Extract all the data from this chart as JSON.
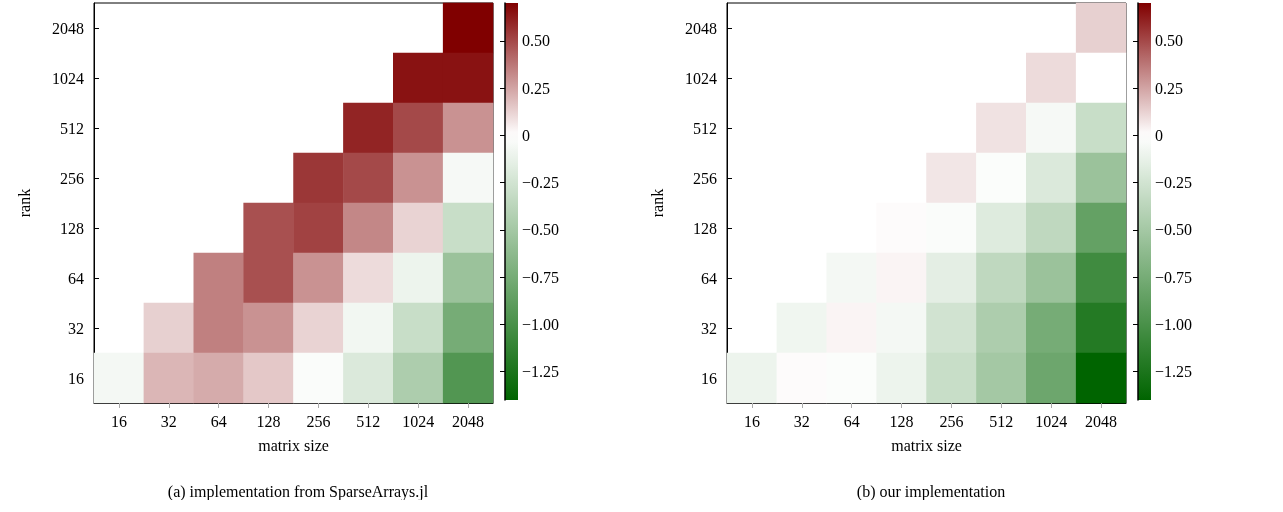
{
  "chart_data": [
    {
      "type": "heatmap",
      "xlabel": "matrix size",
      "ylabel": "rank",
      "annotations": [
        "(a) implementation from SparseArrays.jl"
      ],
      "categories": [
        "16",
        "32",
        "64",
        "128",
        "256",
        "512",
        "1024",
        "2048"
      ],
      "y_categories": [
        "2048",
        "1024",
        "512",
        "256",
        "128",
        "64",
        "32",
        "16"
      ],
      "cells": [
        [
          null,
          null,
          null,
          null,
          null,
          null,
          null,
          0.7
        ],
        [
          null,
          null,
          null,
          null,
          null,
          null,
          0.65,
          0.65
        ],
        [
          null,
          null,
          null,
          null,
          null,
          0.6,
          0.5,
          0.3
        ],
        [
          null,
          null,
          null,
          null,
          0.55,
          0.5,
          0.3,
          -0.05
        ],
        [
          null,
          null,
          null,
          0.48,
          0.52,
          0.33,
          0.12,
          -0.3
        ],
        [
          null,
          null,
          0.35,
          0.48,
          0.3,
          0.1,
          -0.1,
          -0.55
        ],
        [
          null,
          0.13,
          0.35,
          0.3,
          0.12,
          -0.07,
          -0.3,
          -0.75
        ],
        [
          -0.06,
          0.2,
          0.23,
          0.15,
          -0.03,
          -0.2,
          -0.45,
          -0.95
        ]
      ],
      "clim": [
        -1.4,
        0.7
      ],
      "cticks": [
        {
          "value": 0.5,
          "label": "0.50"
        },
        {
          "value": 0.25,
          "label": "0.25"
        },
        0,
        {
          "value": -0.25,
          "label": "−0.25"
        },
        {
          "value": -0.5,
          "label": "−0.50"
        },
        {
          "value": -0.75,
          "label": "−0.75"
        },
        {
          "value": -1,
          "label": "−1.00"
        },
        {
          "value": -1.25,
          "label": "−1.25"
        }
      ]
    },
    {
      "type": "heatmap",
      "xlabel": "matrix size",
      "ylabel": "rank",
      "annotations": [
        "(b) our implementation"
      ],
      "categories": [
        "16",
        "32",
        "64",
        "128",
        "256",
        "512",
        "1024",
        "2048"
      ],
      "y_categories": [
        "2048",
        "1024",
        "512",
        "256",
        "128",
        "64",
        "32",
        "16"
      ],
      "cells": [
        [
          null,
          null,
          null,
          null,
          null,
          null,
          null,
          0.13
        ],
        [
          null,
          null,
          null,
          null,
          null,
          null,
          0.1,
          0
        ],
        [
          null,
          null,
          null,
          null,
          null,
          0.08,
          -0.05,
          -0.3
        ],
        [
          null,
          null,
          null,
          null,
          0.07,
          -0.02,
          -0.2,
          -0.55
        ],
        [
          null,
          null,
          null,
          0.01,
          -0.03,
          -0.18,
          -0.35,
          -0.85
        ],
        [
          null,
          null,
          -0.06,
          0.03,
          -0.15,
          -0.35,
          -0.55,
          -1.05
        ],
        [
          null,
          -0.08,
          0.03,
          -0.06,
          -0.25,
          -0.45,
          -0.75,
          -1.2
        ],
        [
          -0.1,
          0.01,
          -0.02,
          -0.1,
          -0.3,
          -0.5,
          -0.8,
          -1.4
        ]
      ],
      "clim": [
        -1.4,
        0.7
      ],
      "cticks": [
        {
          "value": 0.5,
          "label": "0.50"
        },
        {
          "value": 0.25,
          "label": "0.25"
        },
        0,
        {
          "value": -0.25,
          "label": "−0.25"
        },
        {
          "value": -0.5,
          "label": "−0.50"
        },
        {
          "value": -0.75,
          "label": "−0.75"
        },
        {
          "value": -1,
          "label": "−1.00"
        },
        {
          "value": -1.25,
          "label": "−1.25"
        }
      ]
    }
  ]
}
